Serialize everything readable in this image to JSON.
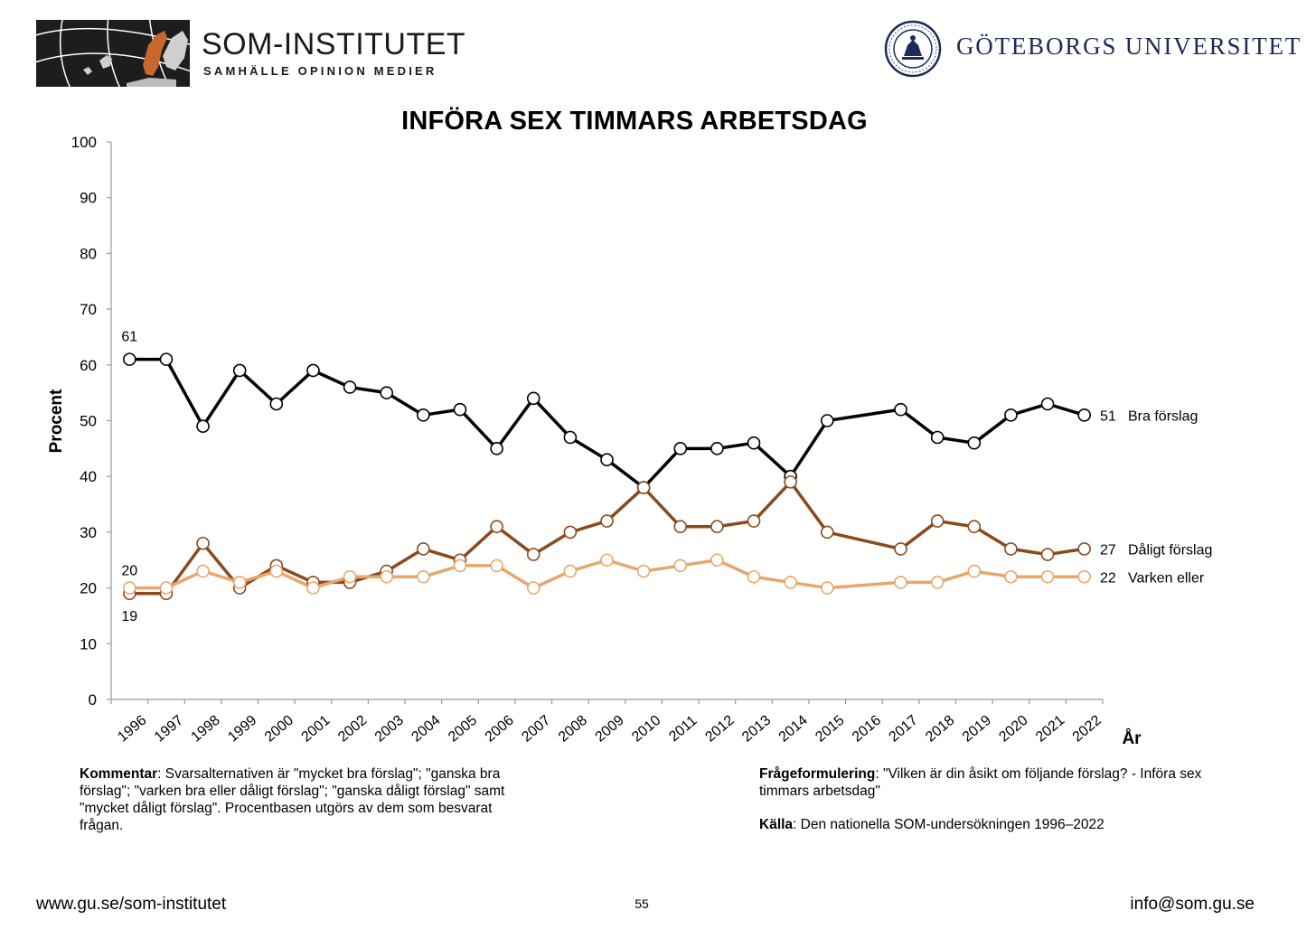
{
  "header": {
    "som_name": "SOM-INSTITUTET",
    "som_tagline": "SAMHÄLLE OPINION MEDIER",
    "university_name": "GÖTEBORGS UNIVERSITET"
  },
  "chart_data": {
    "type": "line",
    "title": "INFÖRA SEX TIMMARS ARBETSDAG",
    "ylabel": "Procent",
    "xlabel": "År",
    "ylim": [
      0,
      100
    ],
    "yticks": [
      0,
      10,
      20,
      30,
      40,
      50,
      60,
      70,
      80,
      90,
      100
    ],
    "categories": [
      "1996",
      "1997",
      "1998",
      "1999",
      "2000",
      "2001",
      "2002",
      "2003",
      "2004",
      "2005",
      "2006",
      "2007",
      "2008",
      "2009",
      "2010",
      "2011",
      "2012",
      "2013",
      "2014",
      "2015",
      "2016",
      "2017",
      "2018",
      "2019",
      "2020",
      "2021",
      "2022"
    ],
    "grid": false,
    "legend": "end-of-line labels",
    "series": [
      {
        "name": "Bra förslag",
        "color": "#000000",
        "values": [
          61,
          61,
          49,
          59,
          53,
          59,
          56,
          55,
          51,
          52,
          45,
          54,
          47,
          43,
          38,
          45,
          45,
          46,
          40,
          50,
          null,
          52,
          47,
          46,
          51,
          53,
          51
        ],
        "end_label": "51"
      },
      {
        "name": "Dåligt förslag",
        "color": "#8b4a1e",
        "values": [
          19,
          19,
          28,
          20,
          24,
          21,
          21,
          23,
          27,
          25,
          31,
          26,
          30,
          32,
          38,
          31,
          31,
          32,
          39,
          30,
          null,
          27,
          32,
          31,
          27,
          26,
          27
        ],
        "end_label": "27"
      },
      {
        "name": "Varken eller",
        "color": "#e6a76b",
        "values": [
          20,
          20,
          23,
          21,
          23,
          20,
          22,
          22,
          22,
          24,
          24,
          20,
          23,
          25,
          23,
          24,
          25,
          22,
          21,
          20,
          null,
          21,
          21,
          23,
          22,
          22,
          22
        ],
        "end_label": "22"
      }
    ],
    "start_labels": [
      "61",
      "20",
      "19"
    ]
  },
  "notes": {
    "comment_label": "Kommentar",
    "comment_text": ": Svarsalternativen är \"mycket bra förslag\"; \"ganska bra förslag\"; \"varken bra eller dåligt förslag\"; \"ganska dåligt förslag\" samt \"mycket dåligt förslag\". Procentbasen utgörs av dem som besvarat frågan.",
    "question_label": "Frågeformulering",
    "question_text": ": \"Vilken är din åsikt om följande förslag? - Införa sex timmars arbetsdag\"",
    "source_label": "Källa",
    "source_text": ": Den nationella SOM-undersökningen 1996–2022"
  },
  "footer": {
    "url": "www.gu.se/som-institutet",
    "page": "55",
    "email": "info@som.gu.se"
  }
}
